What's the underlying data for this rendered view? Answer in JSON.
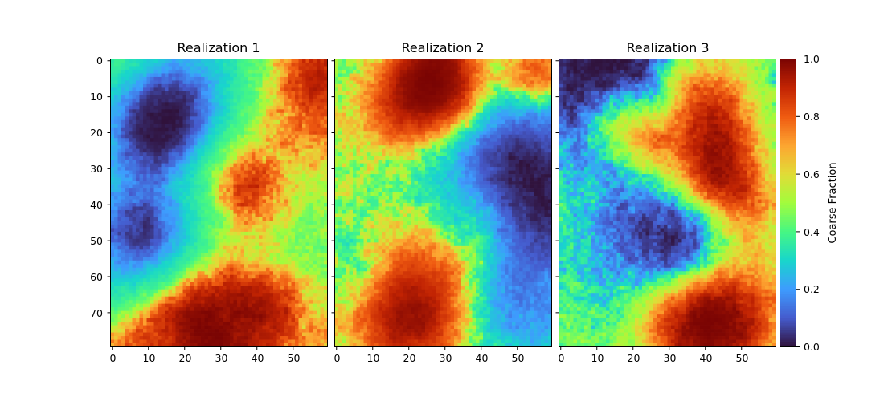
{
  "chart_data": {
    "type": "heatmap",
    "colormap": "turbo",
    "panels": [
      {
        "title": "Realization 1",
        "seed": 11,
        "xlim": [
          0,
          59
        ],
        "ylim": [
          0,
          79
        ]
      },
      {
        "title": "Realization 2",
        "seed": 29,
        "xlim": [
          0,
          59
        ],
        "ylim": [
          0,
          79
        ]
      },
      {
        "title": "Realization 3",
        "seed": 47,
        "xlim": [
          0,
          59
        ],
        "ylim": [
          0,
          79
        ]
      }
    ],
    "x_ticks": [
      "0",
      "10",
      "20",
      "30",
      "40",
      "50"
    ],
    "y_ticks": [
      "0",
      "10",
      "20",
      "30",
      "40",
      "50",
      "60",
      "70"
    ],
    "colorbar": {
      "label": "Coarse Fraction",
      "range": [
        0.0,
        1.0
      ],
      "ticks": [
        "0.0",
        "0.2",
        "0.4",
        "0.6",
        "0.8",
        "1.0"
      ]
    },
    "grid": false
  }
}
